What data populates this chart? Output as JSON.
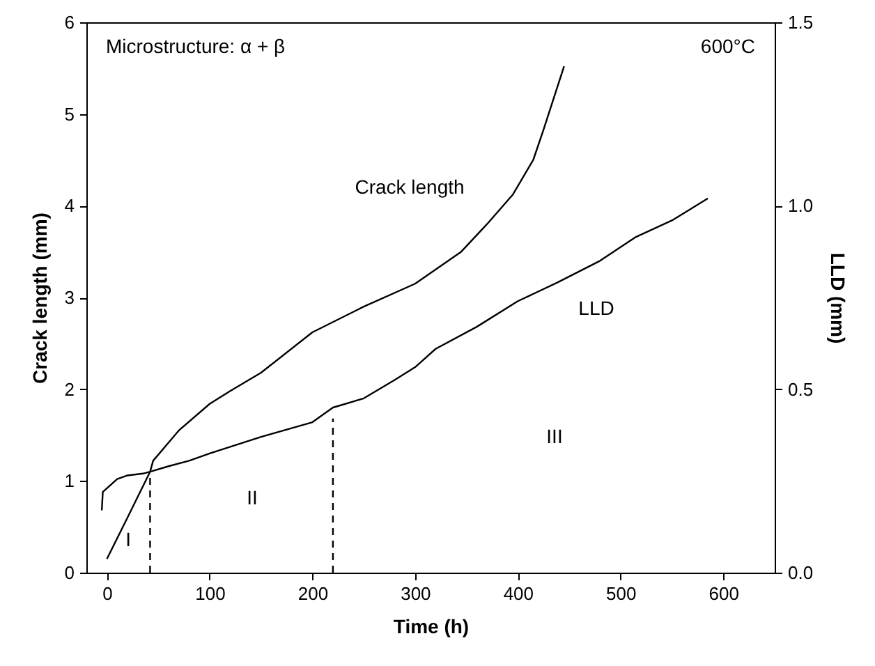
{
  "chart_data": {
    "type": "line",
    "xlabel": "Time (h)",
    "ylabel": "Crack length (mm)",
    "y2label": "LLD (mm)",
    "xlim": [
      -20,
      650
    ],
    "xticks": [
      0,
      100,
      200,
      300,
      400,
      500,
      600
    ],
    "ylim": [
      0,
      6
    ],
    "yticks": [
      0,
      1,
      2,
      3,
      4,
      5,
      6
    ],
    "y2lim": [
      0,
      1.5
    ],
    "y2ticks": [
      {
        "value": 0,
        "label": "0.0"
      },
      {
        "value": 0.5,
        "label": "0.5"
      },
      {
        "value": 1,
        "label": "1.0"
      },
      {
        "value": 1.5,
        "label": "1.5"
      }
    ],
    "grid": false,
    "marker": "none",
    "series": [
      {
        "color": "#000000",
        "line_style": "solid",
        "x": [
          0,
          20,
          42,
          45,
          70,
          100,
          120,
          150,
          200,
          250,
          300,
          345,
          370,
          395,
          415,
          425,
          445
        ],
        "values": [
          0.15,
          0.6,
          1.1,
          1.22,
          1.55,
          1.84,
          1.98,
          2.18,
          2.62,
          2.9,
          3.15,
          3.5,
          3.8,
          4.12,
          4.5,
          4.83,
          5.52
        ]
      },
      {
        "color": "#000000",
        "line_style": "solid",
        "axis": "y2",
        "x": [
          -5,
          -4,
          0,
          10,
          20,
          35,
          42,
          60,
          80,
          100,
          150,
          200,
          220,
          250,
          280,
          300,
          320,
          360,
          400,
          438,
          480,
          515,
          550,
          585
        ],
        "values": [
          0.17,
          0.22,
          0.23,
          0.255,
          0.265,
          0.27,
          0.275,
          0.29,
          0.305,
          0.325,
          0.37,
          0.41,
          0.45,
          0.475,
          0.525,
          0.56,
          0.61,
          0.67,
          0.74,
          0.79,
          0.85,
          0.915,
          0.96,
          1.02
        ]
      },
      {
        "color": "#000000",
        "line_style": "dashed",
        "x": [
          42,
          42
        ],
        "values": [
          0,
          1.1
        ]
      },
      {
        "color": "#000000",
        "line_style": "dashed",
        "x": [
          220,
          220
        ],
        "values": [
          0,
          1.68
        ]
      }
    ],
    "annotations": [
      "Microstructure: α + β",
      "600°C",
      "Crack length",
      "LLD",
      "I",
      "II",
      "III"
    ]
  }
}
